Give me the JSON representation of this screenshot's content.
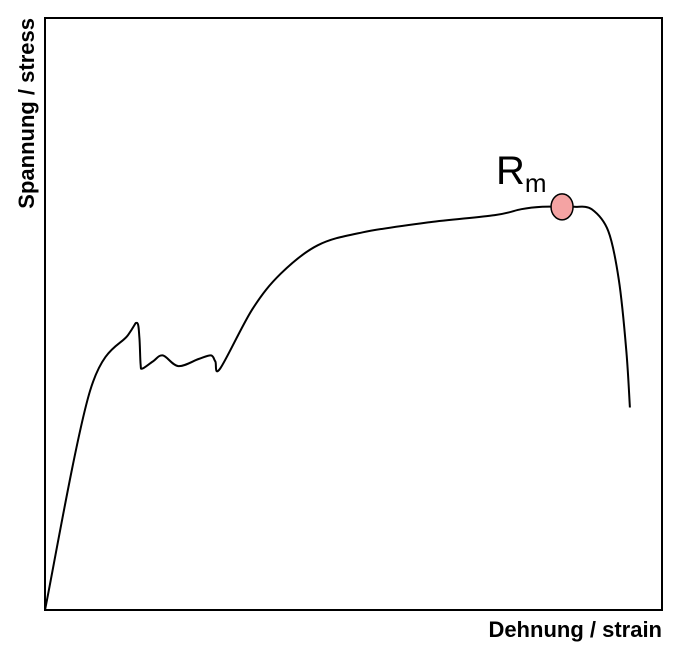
{
  "chart_data": {
    "type": "line",
    "title": "",
    "xlabel": "Dehnung / strain",
    "ylabel": "Spannung / stress",
    "xlim": [
      0,
      100
    ],
    "ylim": [
      0,
      100
    ],
    "grid": false,
    "series": [
      {
        "values": [
          [
            0,
            0
          ],
          [
            7.3,
            37
          ],
          [
            13.5,
            46.5
          ],
          [
            14.9,
            48.5
          ],
          [
            15.3,
            46
          ],
          [
            15.5,
            41.5
          ],
          [
            15.8,
            40.8
          ],
          [
            17.5,
            42
          ],
          [
            19.1,
            43
          ],
          [
            21.6,
            41.2
          ],
          [
            24.9,
            42.4
          ],
          [
            26.9,
            43
          ],
          [
            27.6,
            42
          ],
          [
            28.4,
            40.8
          ],
          [
            33.6,
            50.8
          ],
          [
            38.2,
            56.8
          ],
          [
            44.2,
            61.6
          ],
          [
            51.5,
            63.8
          ],
          [
            62.3,
            65.5
          ],
          [
            72.9,
            66.7
          ],
          [
            77.2,
            67.7
          ],
          [
            80.6,
            68.1
          ],
          [
            83.8,
            68.1
          ],
          [
            85.8,
            68.1
          ],
          [
            88.6,
            67.7
          ],
          [
            91.3,
            64
          ],
          [
            93,
            55.8
          ],
          [
            94.2,
            44
          ],
          [
            94.8,
            34.2
          ]
        ],
        "color": "#000000"
      }
    ],
    "annotations": [
      {
        "text": "R",
        "subscript": "m",
        "x": 83.8,
        "y": 68.1,
        "marker_color": "#f4a3a3"
      }
    ]
  }
}
